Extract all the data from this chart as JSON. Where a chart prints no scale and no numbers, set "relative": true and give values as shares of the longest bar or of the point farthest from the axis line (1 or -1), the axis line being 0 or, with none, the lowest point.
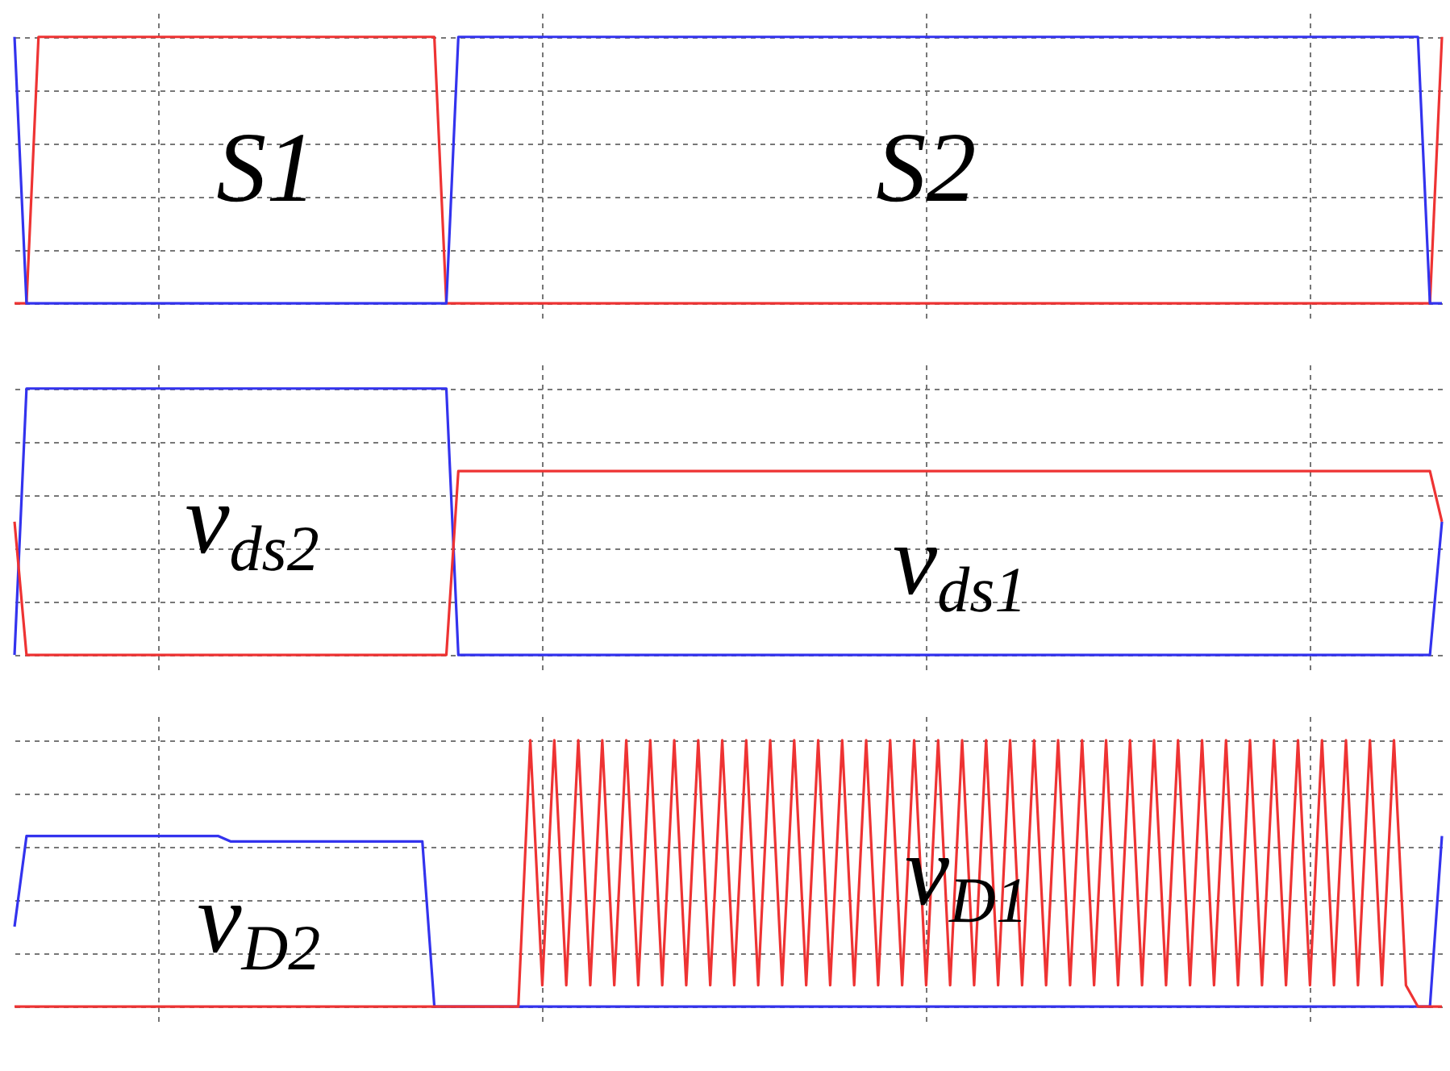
{
  "chart_data": [
    {
      "type": "line",
      "relative": true,
      "grid": true,
      "categories": [
        null,
        null,
        null,
        null,
        null,
        null,
        null,
        null,
        null,
        null,
        null,
        null,
        null,
        null,
        null,
        null,
        null,
        null,
        null,
        null,
        null,
        null,
        null,
        null,
        null,
        null,
        null,
        null,
        null,
        null,
        null,
        null,
        null,
        null,
        null,
        null,
        null,
        null,
        null,
        null,
        null,
        null,
        null,
        null,
        null,
        null,
        null,
        null,
        null,
        null,
        null,
        null,
        null,
        null,
        null,
        null,
        null,
        null,
        null,
        null,
        null,
        null,
        null,
        null,
        null,
        null,
        null,
        null,
        null,
        null,
        null,
        null,
        null,
        null,
        null,
        null,
        null,
        null,
        null,
        null,
        null,
        null,
        null,
        null,
        null,
        null,
        null,
        null,
        null,
        null,
        null,
        null,
        null,
        null,
        null,
        null,
        null,
        null,
        null,
        null,
        null,
        null,
        null,
        null,
        null,
        null,
        null,
        null,
        null,
        null,
        null,
        null,
        null,
        null,
        null,
        null,
        null,
        null,
        null,
        null
      ],
      "series": [
        {
          "name": "S1",
          "color": "#ee3333",
          "values": [
            0,
            0,
            1,
            1,
            1,
            1,
            1,
            1,
            1,
            1,
            1,
            1,
            1,
            1,
            1,
            1,
            1,
            1,
            1,
            1,
            1,
            1,
            1,
            1,
            1,
            1,
            1,
            1,
            1,
            1,
            1,
            1,
            1,
            1,
            1,
            1,
            0,
            0,
            0,
            0,
            0,
            0,
            0,
            0,
            0,
            0,
            0,
            0,
            0,
            0,
            0,
            0,
            0,
            0,
            0,
            0,
            0,
            0,
            0,
            0,
            0,
            0,
            0,
            0,
            0,
            0,
            0,
            0,
            0,
            0,
            0,
            0,
            0,
            0,
            0,
            0,
            0,
            0,
            0,
            0,
            0,
            0,
            0,
            0,
            0,
            0,
            0,
            0,
            0,
            0,
            0,
            0,
            0,
            0,
            0,
            0,
            0,
            0,
            0,
            0,
            0,
            0,
            0,
            0,
            0,
            0,
            0,
            0,
            0,
            0,
            0,
            0,
            0,
            0,
            0,
            0,
            0,
            0,
            0,
            1
          ]
        },
        {
          "name": "S2",
          "color": "#3333ee",
          "values": [
            1,
            0,
            0,
            0,
            0,
            0,
            0,
            0,
            0,
            0,
            0,
            0,
            0,
            0,
            0,
            0,
            0,
            0,
            0,
            0,
            0,
            0,
            0,
            0,
            0,
            0,
            0,
            0,
            0,
            0,
            0,
            0,
            0,
            0,
            0,
            0,
            0,
            1,
            1,
            1,
            1,
            1,
            1,
            1,
            1,
            1,
            1,
            1,
            1,
            1,
            1,
            1,
            1,
            1,
            1,
            1,
            1,
            1,
            1,
            1,
            1,
            1,
            1,
            1,
            1,
            1,
            1,
            1,
            1,
            1,
            1,
            1,
            1,
            1,
            1,
            1,
            1,
            1,
            1,
            1,
            1,
            1,
            1,
            1,
            1,
            1,
            1,
            1,
            1,
            1,
            1,
            1,
            1,
            1,
            1,
            1,
            1,
            1,
            1,
            1,
            1,
            1,
            1,
            1,
            1,
            1,
            1,
            1,
            1,
            1,
            1,
            1,
            1,
            1,
            1,
            1,
            1,
            1,
            0,
            0
          ]
        }
      ]
    },
    {
      "type": "line",
      "relative": true,
      "grid": true,
      "categories": [
        null,
        null,
        null,
        null,
        null,
        null,
        null,
        null,
        null,
        null,
        null,
        null,
        null,
        null,
        null,
        null,
        null,
        null,
        null,
        null,
        null,
        null,
        null,
        null,
        null,
        null,
        null,
        null,
        null,
        null,
        null,
        null,
        null,
        null,
        null,
        null,
        null,
        null,
        null,
        null,
        null,
        null,
        null,
        null,
        null,
        null,
        null,
        null,
        null,
        null,
        null,
        null,
        null,
        null,
        null,
        null,
        null,
        null,
        null,
        null,
        null,
        null,
        null,
        null,
        null,
        null,
        null,
        null,
        null,
        null,
        null,
        null,
        null,
        null,
        null,
        null,
        null,
        null,
        null,
        null,
        null,
        null,
        null,
        null,
        null,
        null,
        null,
        null,
        null,
        null,
        null,
        null,
        null,
        null,
        null,
        null,
        null,
        null,
        null,
        null,
        null,
        null,
        null,
        null,
        null,
        null,
        null,
        null,
        null,
        null,
        null,
        null,
        null,
        null,
        null,
        null,
        null,
        null,
        null,
        null
      ],
      "series": [
        {
          "name": "v$_{ds2}$",
          "color": "#3333ee",
          "values": [
            0,
            1,
            1,
            1,
            1,
            1,
            1,
            1,
            1,
            1,
            1,
            1,
            1,
            1,
            1,
            1,
            1,
            1,
            1,
            1,
            1,
            1,
            1,
            1,
            1,
            1,
            1,
            1,
            1,
            1,
            1,
            1,
            1,
            1,
            1,
            1,
            1,
            0,
            0,
            0,
            0,
            0,
            0,
            0,
            0,
            0,
            0,
            0,
            0,
            0,
            0,
            0,
            0,
            0,
            0,
            0,
            0,
            0,
            0,
            0,
            0,
            0,
            0,
            0,
            0,
            0,
            0,
            0,
            0,
            0,
            0,
            0,
            0,
            0,
            0,
            0,
            0,
            0,
            0,
            0,
            0,
            0,
            0,
            0,
            0,
            0,
            0,
            0,
            0,
            0,
            0,
            0,
            0,
            0,
            0,
            0,
            0,
            0,
            0,
            0,
            0,
            0,
            0,
            0,
            0,
            0,
            0,
            0,
            0,
            0,
            0,
            0,
            0,
            0,
            0,
            0,
            0,
            0,
            0,
            0.5
          ]
        },
        {
          "name": "v$_{ds1}$",
          "color": "#ee3333",
          "values": [
            0.5,
            0,
            0,
            0,
            0,
            0,
            0,
            0,
            0,
            0,
            0,
            0,
            0,
            0,
            0,
            0,
            0,
            0,
            0,
            0,
            0,
            0,
            0,
            0,
            0,
            0,
            0,
            0,
            0,
            0,
            0,
            0,
            0,
            0,
            0,
            0,
            0,
            0.69,
            0.69,
            0.69,
            0.69,
            0.69,
            0.69,
            0.69,
            0.69,
            0.69,
            0.69,
            0.69,
            0.69,
            0.69,
            0.69,
            0.69,
            0.69,
            0.69,
            0.69,
            0.69,
            0.69,
            0.69,
            0.69,
            0.69,
            0.69,
            0.69,
            0.69,
            0.69,
            0.69,
            0.69,
            0.69,
            0.69,
            0.69,
            0.69,
            0.69,
            0.69,
            0.69,
            0.69,
            0.69,
            0.69,
            0.69,
            0.69,
            0.69,
            0.69,
            0.69,
            0.69,
            0.69,
            0.69,
            0.69,
            0.69,
            0.69,
            0.69,
            0.69,
            0.69,
            0.69,
            0.69,
            0.69,
            0.69,
            0.69,
            0.69,
            0.69,
            0.69,
            0.69,
            0.69,
            0.69,
            0.69,
            0.69,
            0.69,
            0.69,
            0.69,
            0.69,
            0.69,
            0.69,
            0.69,
            0.69,
            0.69,
            0.69,
            0.69,
            0.69,
            0.69,
            0.69,
            0.69,
            0.69,
            0.5
          ]
        }
      ]
    },
    {
      "type": "line",
      "relative": true,
      "grid": true,
      "categories": [
        null,
        null,
        null,
        null,
        null,
        null,
        null,
        null,
        null,
        null,
        null,
        null,
        null,
        null,
        null,
        null,
        null,
        null,
        null,
        null,
        null,
        null,
        null,
        null,
        null,
        null,
        null,
        null,
        null,
        null,
        null,
        null,
        null,
        null,
        null,
        null,
        null,
        null,
        null,
        null,
        null,
        null,
        null,
        null,
        null,
        null,
        null,
        null,
        null,
        null,
        null,
        null,
        null,
        null,
        null,
        null,
        null,
        null,
        null,
        null,
        null,
        null,
        null,
        null,
        null,
        null,
        null,
        null,
        null,
        null,
        null,
        null,
        null,
        null,
        null,
        null,
        null,
        null,
        null,
        null,
        null,
        null,
        null,
        null,
        null,
        null,
        null,
        null,
        null,
        null,
        null,
        null,
        null,
        null,
        null,
        null,
        null,
        null,
        null,
        null,
        null,
        null,
        null,
        null,
        null,
        null,
        null,
        null,
        null,
        null,
        null,
        null,
        null,
        null,
        null,
        null,
        null,
        null,
        null,
        null
      ],
      "series": [
        {
          "name": "v$_{D2}$",
          "color": "#3333ee",
          "values": [
            0.3,
            0.64,
            0.64,
            0.64,
            0.64,
            0.64,
            0.64,
            0.64,
            0.64,
            0.64,
            0.64,
            0.64,
            0.64,
            0.64,
            0.64,
            0.64,
            0.64,
            0.64,
            0.62,
            0.62,
            0.62,
            0.62,
            0.62,
            0.62,
            0.62,
            0.62,
            0.62,
            0.62,
            0.62,
            0.62,
            0.62,
            0.62,
            0.62,
            0.62,
            0.62,
            0,
            0,
            0,
            0,
            0,
            0,
            0,
            0,
            0,
            0,
            0,
            0,
            0,
            0,
            0,
            0,
            0,
            0,
            0,
            0,
            0,
            0,
            0,
            0,
            0,
            0,
            0,
            0,
            0,
            0,
            0,
            0,
            0,
            0,
            0,
            0,
            0,
            0,
            0,
            0,
            0,
            0,
            0,
            0,
            0,
            0,
            0,
            0,
            0,
            0,
            0,
            0,
            0,
            0,
            0,
            0,
            0,
            0,
            0,
            0,
            0,
            0,
            0,
            0,
            0,
            0,
            0,
            0,
            0,
            0,
            0,
            0,
            0,
            0,
            0,
            0,
            0,
            0,
            0,
            0,
            0,
            0,
            0,
            0,
            0.64
          ]
        },
        {
          "name": "v$_{D1}$",
          "color": "#ee3333",
          "values": [
            0,
            0,
            0,
            0,
            0,
            0,
            0,
            0,
            0,
            0,
            0,
            0,
            0,
            0,
            0,
            0,
            0,
            0,
            0,
            0,
            0,
            0,
            0,
            0,
            0,
            0,
            0,
            0,
            0,
            0,
            0,
            0,
            0,
            0,
            0,
            0,
            0,
            0,
            0,
            0,
            0,
            0,
            0,
            1,
            0.08,
            1,
            0.08,
            1,
            0.08,
            1,
            0.08,
            1,
            0.08,
            1,
            0.08,
            1,
            0.08,
            1,
            0.08,
            1,
            0.08,
            1,
            0.08,
            1,
            0.08,
            1,
            0.08,
            1,
            0.08,
            1,
            0.08,
            1,
            0.08,
            1,
            0.08,
            1,
            0.08,
            1,
            0.08,
            1,
            0.08,
            1,
            0.08,
            1,
            0.08,
            1,
            0.08,
            1,
            0.08,
            1,
            0.08,
            1,
            0.08,
            1,
            0.08,
            1,
            0.08,
            1,
            0.08,
            1,
            0.08,
            1,
            0.08,
            1,
            0.08,
            1,
            0.08,
            1,
            0.08,
            1,
            0.08,
            1,
            0.08,
            1,
            0.08,
            1,
            0.08,
            0,
            0,
            0
          ]
        }
      ]
    }
  ]
}
